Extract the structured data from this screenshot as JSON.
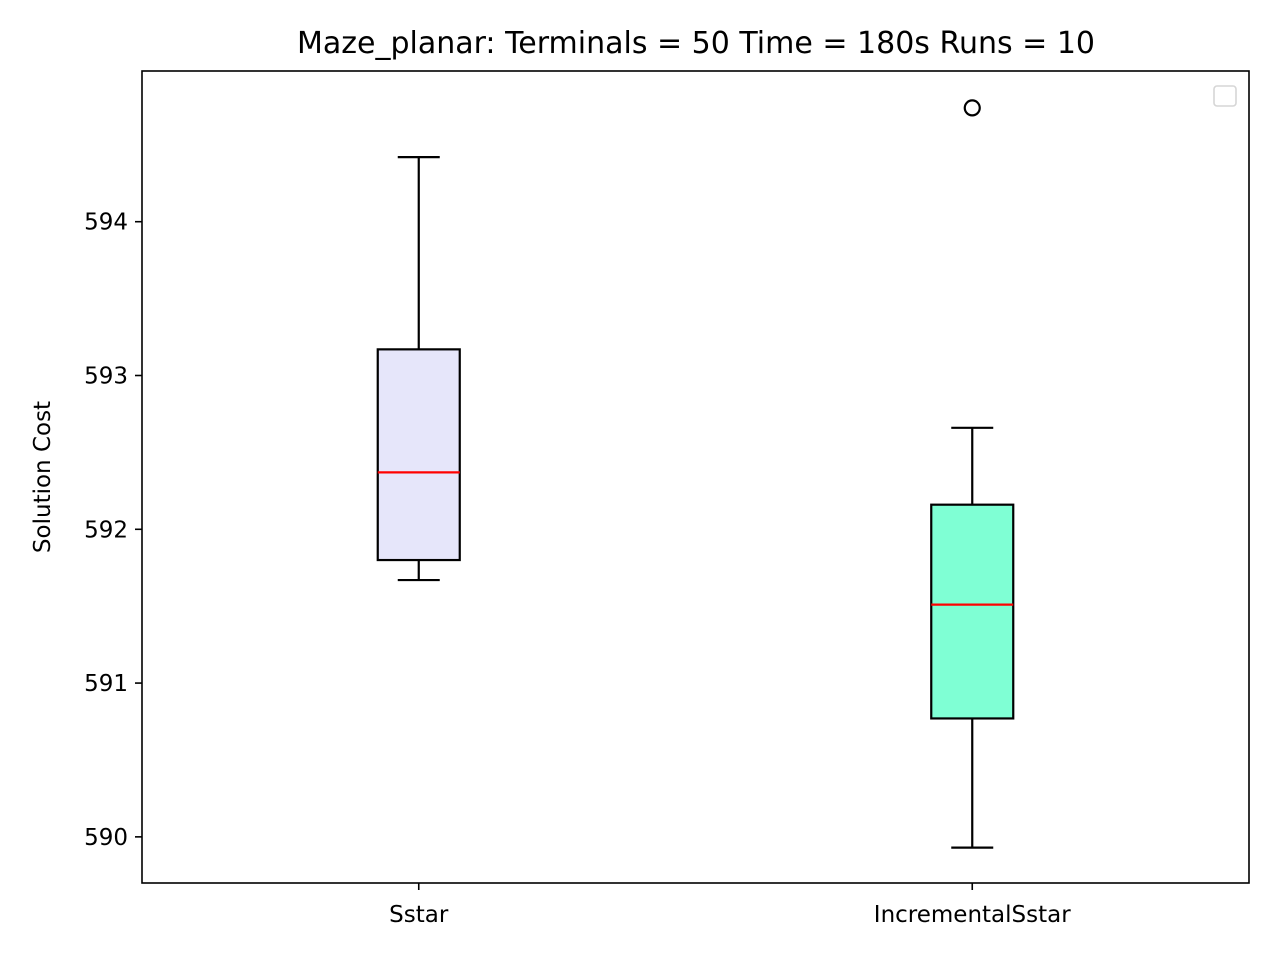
{
  "chart_data": {
    "type": "box",
    "title": "Maze_planar:  Terminals = 50  Time = 180s  Runs = 10",
    "xlabel": "",
    "ylabel": "Solution Cost",
    "ylim": [
      589.7,
      594.98
    ],
    "yticks": [
      590,
      591,
      592,
      593,
      594
    ],
    "ytick_labels": [
      "590",
      "591",
      "592",
      "593",
      "594"
    ],
    "categories": [
      "Sstar",
      "IncrementalSstar"
    ],
    "grid": false,
    "legend": "top-right, empty",
    "median_color": "#ff0000",
    "boxes": [
      {
        "label": "Sstar",
        "whisker_low": 591.67,
        "q1": 591.8,
        "median": 592.37,
        "q3": 593.17,
        "whisker_high": 594.42,
        "outliers": [],
        "fill": "#e6e6fa"
      },
      {
        "label": "IncrementalSstar",
        "whisker_low": 589.93,
        "q1": 590.77,
        "median": 591.51,
        "q3": 592.16,
        "whisker_high": 592.66,
        "outliers": [
          594.74
        ],
        "fill": "#7fffd4"
      }
    ]
  }
}
